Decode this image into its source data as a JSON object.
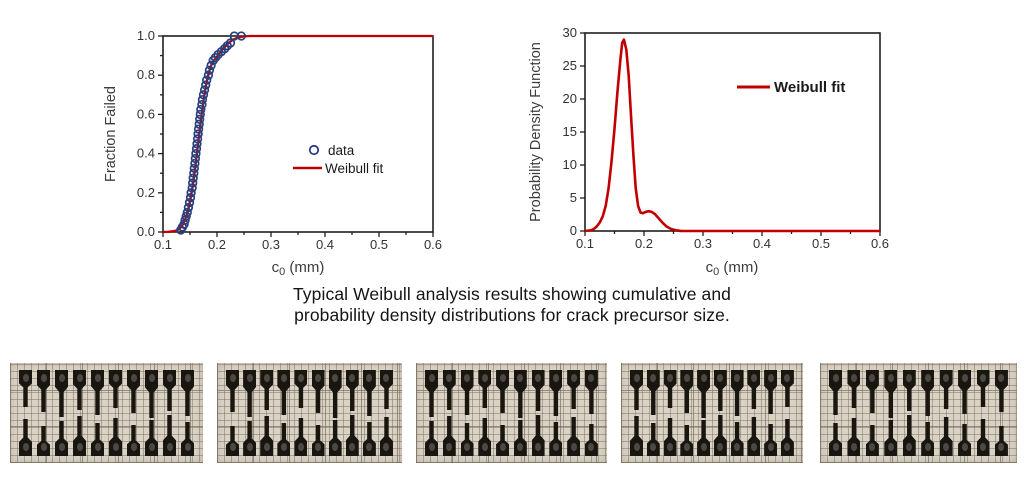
{
  "caption": {
    "line1": "Typical Weibull analysis results showing cumulative and",
    "line2": "probability density distributions for crack precursor size."
  },
  "colors": {
    "fit_red": "#c00000",
    "data_blue": "#2a3f7d",
    "axis": "#1f1f1f",
    "tick_text": "#333333",
    "axis_title": "#3c3c3c",
    "paper": "#d9d2c5",
    "grid_line": "#7a705f",
    "specimen_black": "#19150f"
  },
  "chart_data": [
    {
      "type": "scatter",
      "title": "",
      "xlabel": {
        "pre": "c",
        "sub": "0",
        "post": " (mm)"
      },
      "ylabel": "Fraction Failed",
      "xlim": [
        0.1,
        0.6
      ],
      "ylim": [
        0.0,
        1.0
      ],
      "x_ticks": [
        0.1,
        0.2,
        0.3,
        0.4,
        0.5,
        0.6
      ],
      "x_tick_labels": [
        "0.1",
        "0.2",
        "0.3",
        "0.4",
        "0.5",
        "0.6"
      ],
      "y_ticks": [
        0.0,
        0.2,
        0.4,
        0.6,
        0.8,
        1.0
      ],
      "y_tick_labels": [
        "0.0",
        "0.2",
        "0.4",
        "0.6",
        "0.8",
        "1.0"
      ],
      "x_minor_step": 0.05,
      "y_minor_step": 0.1,
      "grid": false,
      "legend_position": "center-right",
      "legend": [
        {
          "label": "data",
          "marker": "circle",
          "color": "#2a3f7d"
        },
        {
          "label": "Weibull fit",
          "marker": "line",
          "color": "#c00000"
        }
      ],
      "series": [
        {
          "name": "Weibull fit",
          "type": "line",
          "color": "#c00000",
          "points": [
            [
              0.1,
              0.0
            ],
            [
              0.11,
              0.001
            ],
            [
              0.12,
              0.004
            ],
            [
              0.125,
              0.008
            ],
            [
              0.13,
              0.015
            ],
            [
              0.135,
              0.03
            ],
            [
              0.14,
              0.055
            ],
            [
              0.145,
              0.095
            ],
            [
              0.15,
              0.155
            ],
            [
              0.155,
              0.235
            ],
            [
              0.16,
              0.335
            ],
            [
              0.165,
              0.45
            ],
            [
              0.17,
              0.565
            ],
            [
              0.175,
              0.67
            ],
            [
              0.18,
              0.755
            ],
            [
              0.185,
              0.815
            ],
            [
              0.19,
              0.855
            ],
            [
              0.195,
              0.878
            ],
            [
              0.2,
              0.895
            ],
            [
              0.205,
              0.912
            ],
            [
              0.21,
              0.93
            ],
            [
              0.215,
              0.946
            ],
            [
              0.22,
              0.96
            ],
            [
              0.225,
              0.972
            ],
            [
              0.23,
              0.981
            ],
            [
              0.235,
              0.988
            ],
            [
              0.24,
              0.993
            ],
            [
              0.25,
              0.998
            ],
            [
              0.26,
              1.0
            ],
            [
              0.3,
              1.0
            ],
            [
              0.4,
              1.0
            ],
            [
              0.5,
              1.0
            ],
            [
              0.6,
              1.0
            ]
          ]
        },
        {
          "name": "data",
          "type": "scatter",
          "color": "#2a3f7d",
          "points": [
            [
              0.133,
              0.01
            ],
            [
              0.136,
              0.025
            ],
            [
              0.139,
              0.04
            ],
            [
              0.141,
              0.06
            ],
            [
              0.143,
              0.08
            ],
            [
              0.145,
              0.1
            ],
            [
              0.147,
              0.125
            ],
            [
              0.149,
              0.15
            ],
            [
              0.151,
              0.175
            ],
            [
              0.152,
              0.2
            ],
            [
              0.154,
              0.225
            ],
            [
              0.155,
              0.25
            ],
            [
              0.156,
              0.275
            ],
            [
              0.157,
              0.3
            ],
            [
              0.158,
              0.325
            ],
            [
              0.159,
              0.35
            ],
            [
              0.16,
              0.375
            ],
            [
              0.161,
              0.4
            ],
            [
              0.162,
              0.425
            ],
            [
              0.163,
              0.45
            ],
            [
              0.164,
              0.475
            ],
            [
              0.165,
              0.5
            ],
            [
              0.166,
              0.525
            ],
            [
              0.167,
              0.55
            ],
            [
              0.168,
              0.575
            ],
            [
              0.169,
              0.6
            ],
            [
              0.17,
              0.625
            ],
            [
              0.172,
              0.65
            ],
            [
              0.173,
              0.675
            ],
            [
              0.175,
              0.7
            ],
            [
              0.177,
              0.725
            ],
            [
              0.179,
              0.75
            ],
            [
              0.181,
              0.775
            ],
            [
              0.184,
              0.8
            ],
            [
              0.186,
              0.825
            ],
            [
              0.189,
              0.85
            ],
            [
              0.193,
              0.875
            ],
            [
              0.197,
              0.89
            ],
            [
              0.202,
              0.905
            ],
            [
              0.208,
              0.92
            ],
            [
              0.214,
              0.935
            ],
            [
              0.219,
              0.95
            ],
            [
              0.225,
              0.965
            ],
            [
              0.232,
              1.0
            ],
            [
              0.245,
              1.0
            ]
          ]
        }
      ]
    },
    {
      "type": "line",
      "title": "",
      "xlabel": {
        "pre": "c",
        "sub": "0",
        "post": " (mm)"
      },
      "ylabel": "Probability Density Function",
      "xlim": [
        0.1,
        0.6
      ],
      "ylim": [
        0,
        30
      ],
      "x_ticks": [
        0.1,
        0.2,
        0.3,
        0.4,
        0.5,
        0.6
      ],
      "x_tick_labels": [
        "0.1",
        "0.2",
        "0.3",
        "0.4",
        "0.5",
        "0.6"
      ],
      "y_ticks": [
        0,
        5,
        10,
        15,
        20,
        25,
        30
      ],
      "y_tick_labels": [
        "0",
        "5",
        "10",
        "15",
        "20",
        "25",
        "30"
      ],
      "x_minor_step": 0.05,
      "grid": false,
      "legend_position": "upper-right",
      "legend": [
        {
          "label": "Weibull fit",
          "marker": "line",
          "color": "#c00000"
        }
      ],
      "series": [
        {
          "name": "Weibull fit",
          "type": "line",
          "color": "#c00000",
          "points": [
            [
              0.1,
              0.0
            ],
            [
              0.11,
              0.1
            ],
            [
              0.115,
              0.3
            ],
            [
              0.12,
              0.7
            ],
            [
              0.125,
              1.3
            ],
            [
              0.13,
              2.2
            ],
            [
              0.135,
              3.8
            ],
            [
              0.14,
              6.5
            ],
            [
              0.145,
              10.5
            ],
            [
              0.15,
              15.5
            ],
            [
              0.155,
              21.0
            ],
            [
              0.16,
              26.0
            ],
            [
              0.163,
              28.5
            ],
            [
              0.166,
              29.0
            ],
            [
              0.17,
              27.5
            ],
            [
              0.174,
              23.5
            ],
            [
              0.178,
              17.5
            ],
            [
              0.182,
              11.5
            ],
            [
              0.186,
              6.5
            ],
            [
              0.19,
              3.8
            ],
            [
              0.194,
              2.8
            ],
            [
              0.198,
              2.7
            ],
            [
              0.203,
              2.9
            ],
            [
              0.208,
              3.0
            ],
            [
              0.213,
              2.9
            ],
            [
              0.218,
              2.6
            ],
            [
              0.224,
              2.0
            ],
            [
              0.23,
              1.4
            ],
            [
              0.238,
              0.7
            ],
            [
              0.246,
              0.3
            ],
            [
              0.254,
              0.1
            ],
            [
              0.262,
              0.02
            ],
            [
              0.27,
              0.0
            ],
            [
              0.3,
              0.0
            ],
            [
              0.35,
              0.0
            ],
            [
              0.4,
              0.0
            ],
            [
              0.45,
              0.0
            ],
            [
              0.5,
              0.0
            ],
            [
              0.55,
              0.0
            ],
            [
              0.6,
              0.0
            ]
          ]
        }
      ]
    }
  ],
  "specimen_photos": {
    "count": 5,
    "photos": [
      {
        "top_count": 10,
        "bottom_count": 10
      },
      {
        "top_count": 10,
        "bottom_count": 10
      },
      {
        "top_count": 10,
        "bottom_count": 10
      },
      {
        "top_count": 10,
        "bottom_count": 10
      },
      {
        "top_count": 10,
        "bottom_count": 10
      }
    ]
  }
}
